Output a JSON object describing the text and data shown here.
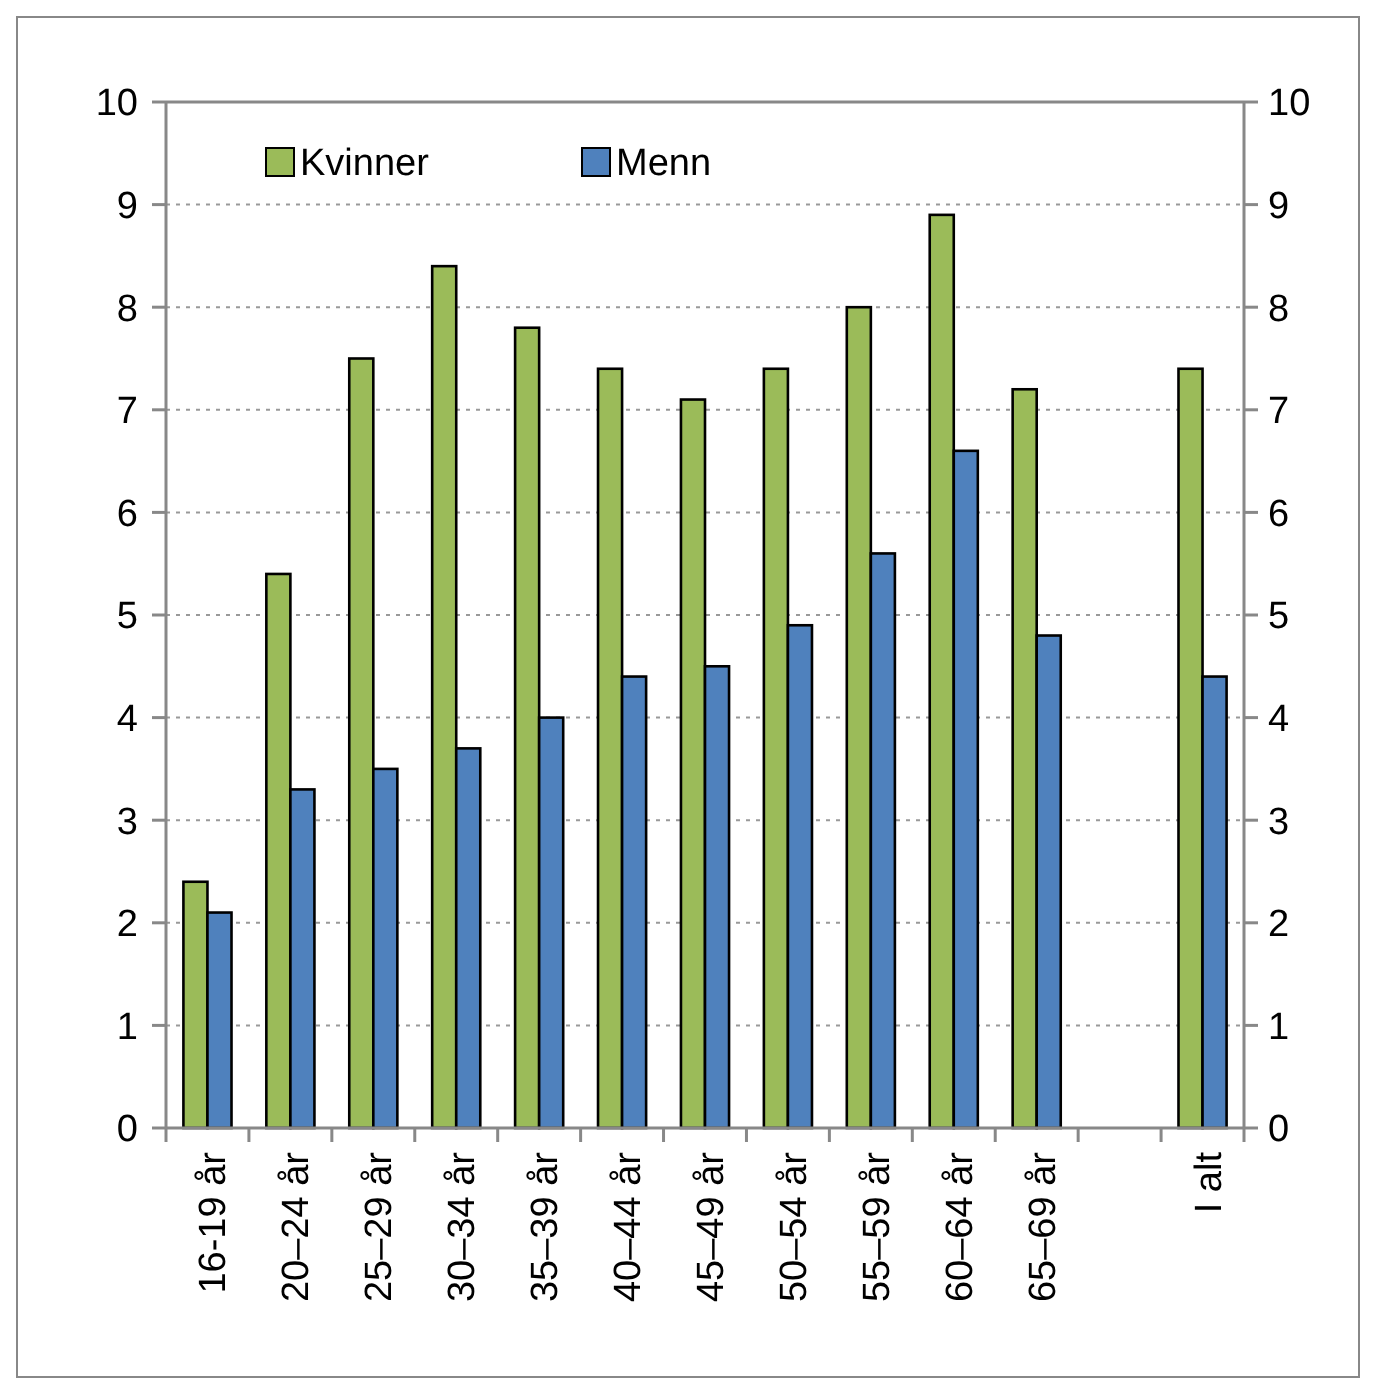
{
  "chart_data": {
    "type": "bar",
    "categories": [
      "16-19 år",
      "20–24 år",
      "25–29 år",
      "30–34 år",
      "35–39 år",
      "40–44 år",
      "45–49 år",
      "50–54 år",
      "55–59 år",
      "60–64 år",
      "65–69 år",
      null,
      "I alt"
    ],
    "series": [
      {
        "name": "Kvinner",
        "color": "#9bbb59",
        "values": [
          2.4,
          5.4,
          7.5,
          8.4,
          7.8,
          7.4,
          7.1,
          7.4,
          8.0,
          8.9,
          7.2,
          null,
          7.4
        ]
      },
      {
        "name": "Menn",
        "color": "#4f81bd",
        "values": [
          2.1,
          3.3,
          3.5,
          3.7,
          4.0,
          4.4,
          4.5,
          4.9,
          5.6,
          6.6,
          4.8,
          null,
          4.4
        ]
      }
    ],
    "ylim": [
      0,
      10
    ],
    "yticks": [
      0,
      1,
      2,
      3,
      4,
      5,
      6,
      7,
      8,
      9,
      10
    ],
    "y2lim": [
      0,
      10
    ],
    "y2ticks": [
      0,
      1,
      2,
      3,
      4,
      5,
      6,
      7,
      8,
      9,
      10
    ],
    "grid": "y",
    "legend": "top left"
  }
}
